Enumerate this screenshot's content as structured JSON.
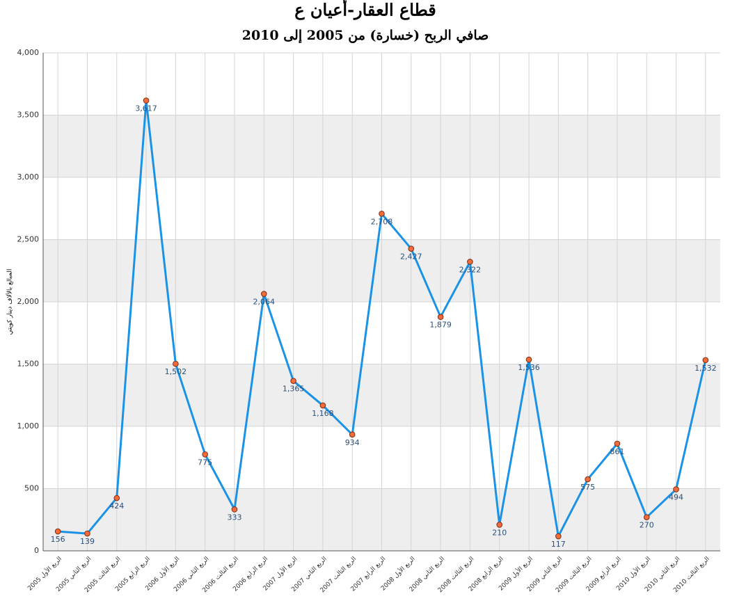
{
  "chart_data": {
    "type": "line",
    "title": "قطاع العقار-أعيان ع",
    "subtitle": "صافي الربح (خسارة) من 2005 إلى 2010",
    "y_label": "المبالغ بالألاف دينار كويتي",
    "categories": [
      "الربع الأول 2005",
      "الربع الثاني 2005",
      "الربع الثالث 2005",
      "الربع الرابع 2005",
      "الربع الأول 2006",
      "الربع الثاني 2006",
      "الربع الثالث 2006",
      "الربع الرابع 2006",
      "الربع الأول 2007",
      "الربع الثاني 2007",
      "الربع الثالث 2007",
      "الربع الرابع 2007",
      "الربع الأول 2008",
      "الربع الثاني 2008",
      "الربع الثالث 2008",
      "الربع الرابع 2008",
      "الربع الأول 2009",
      "الربع الثاني 2009",
      "الربع الثالث 2009",
      "الربع الرابع 2009",
      "الربع الأول 2010",
      "الربع الثاني 2010",
      "الربع الثالث 2010"
    ],
    "values": [
      156,
      139,
      424,
      3617,
      1502,
      775,
      333,
      2064,
      1365,
      1168,
      934,
      2708,
      2427,
      1879,
      2322,
      210,
      1536,
      117,
      575,
      861,
      270,
      494,
      1532
    ],
    "value_labels": [
      "156",
      "139",
      "424",
      "3,617",
      "1,502",
      "775",
      "333",
      "2,064",
      "1,365",
      "1,168",
      "934",
      "2,708",
      "2,427",
      "1,879",
      "2,322",
      "210",
      "1,536",
      "117",
      "575",
      "861",
      "270",
      "494",
      "1,532"
    ],
    "color": "#1a93e6",
    "marker_color": "#f26b3a",
    "ylim": [
      0,
      4000
    ],
    "yticks": [
      0,
      500,
      {
        "value": 1000,
        "label": "1,000"
      },
      {
        "value": 1500,
        "label": "1,500"
      },
      {
        "value": 2000,
        "label": "2,000"
      },
      {
        "value": 2500,
        "label": "2,500"
      },
      {
        "value": 3000,
        "label": "3,000"
      },
      {
        "value": 3500,
        "label": "3,500"
      },
      {
        "value": 4000,
        "label": "4,000"
      }
    ],
    "grid": true,
    "bands": true
  }
}
